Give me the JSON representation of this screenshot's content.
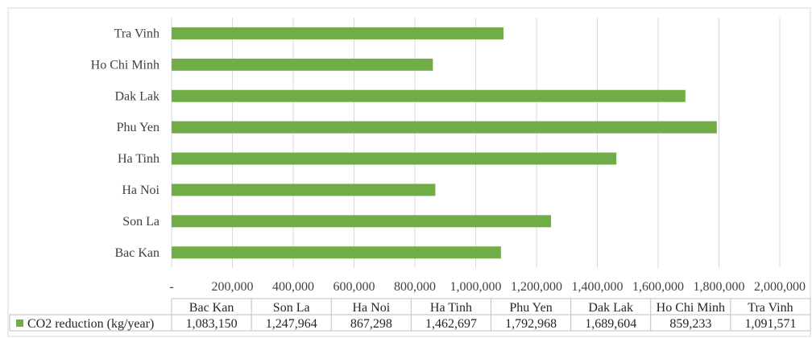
{
  "chart_data": {
    "type": "bar",
    "orientation": "horizontal",
    "categories": [
      "Bac Kan",
      "Son La",
      "Ha Noi",
      "Ha Tinh",
      "Phu Yen",
      "Dak Lak",
      "Ho Chi Minh",
      "Tra Vinh"
    ],
    "series": [
      {
        "name": "CO2 reduction (kg/year)",
        "values": [
          1083150,
          1247964,
          867298,
          1462697,
          1792968,
          1689604,
          859233,
          1091571
        ],
        "value_labels": [
          "1,083,150",
          "1,247,964",
          "867,298",
          "1,462,697",
          "1,792,968",
          "1,689,604",
          "859,233",
          "1,091,571"
        ],
        "color": "#70AD47"
      }
    ],
    "xlim": [
      0,
      2000000
    ],
    "x_ticks": [
      0,
      200000,
      400000,
      600000,
      800000,
      1000000,
      1200000,
      1400000,
      1600000,
      1800000,
      2000000
    ],
    "x_tick_labels": [
      "-",
      "200,000",
      "400,000",
      "600,000",
      "800,000",
      "1,000,000",
      "1,200,000",
      "1,400,000",
      "1,600,000",
      "1,800,000",
      "2,000,000"
    ],
    "title": "",
    "xlabel": "",
    "ylabel": "",
    "grid": "vertical",
    "data_table": true,
    "legend": "left of data table"
  },
  "colors": {
    "bar": "#70AD47",
    "grid": "#d9d9d9",
    "border": "#bfbfbf",
    "text": "#404040"
  }
}
